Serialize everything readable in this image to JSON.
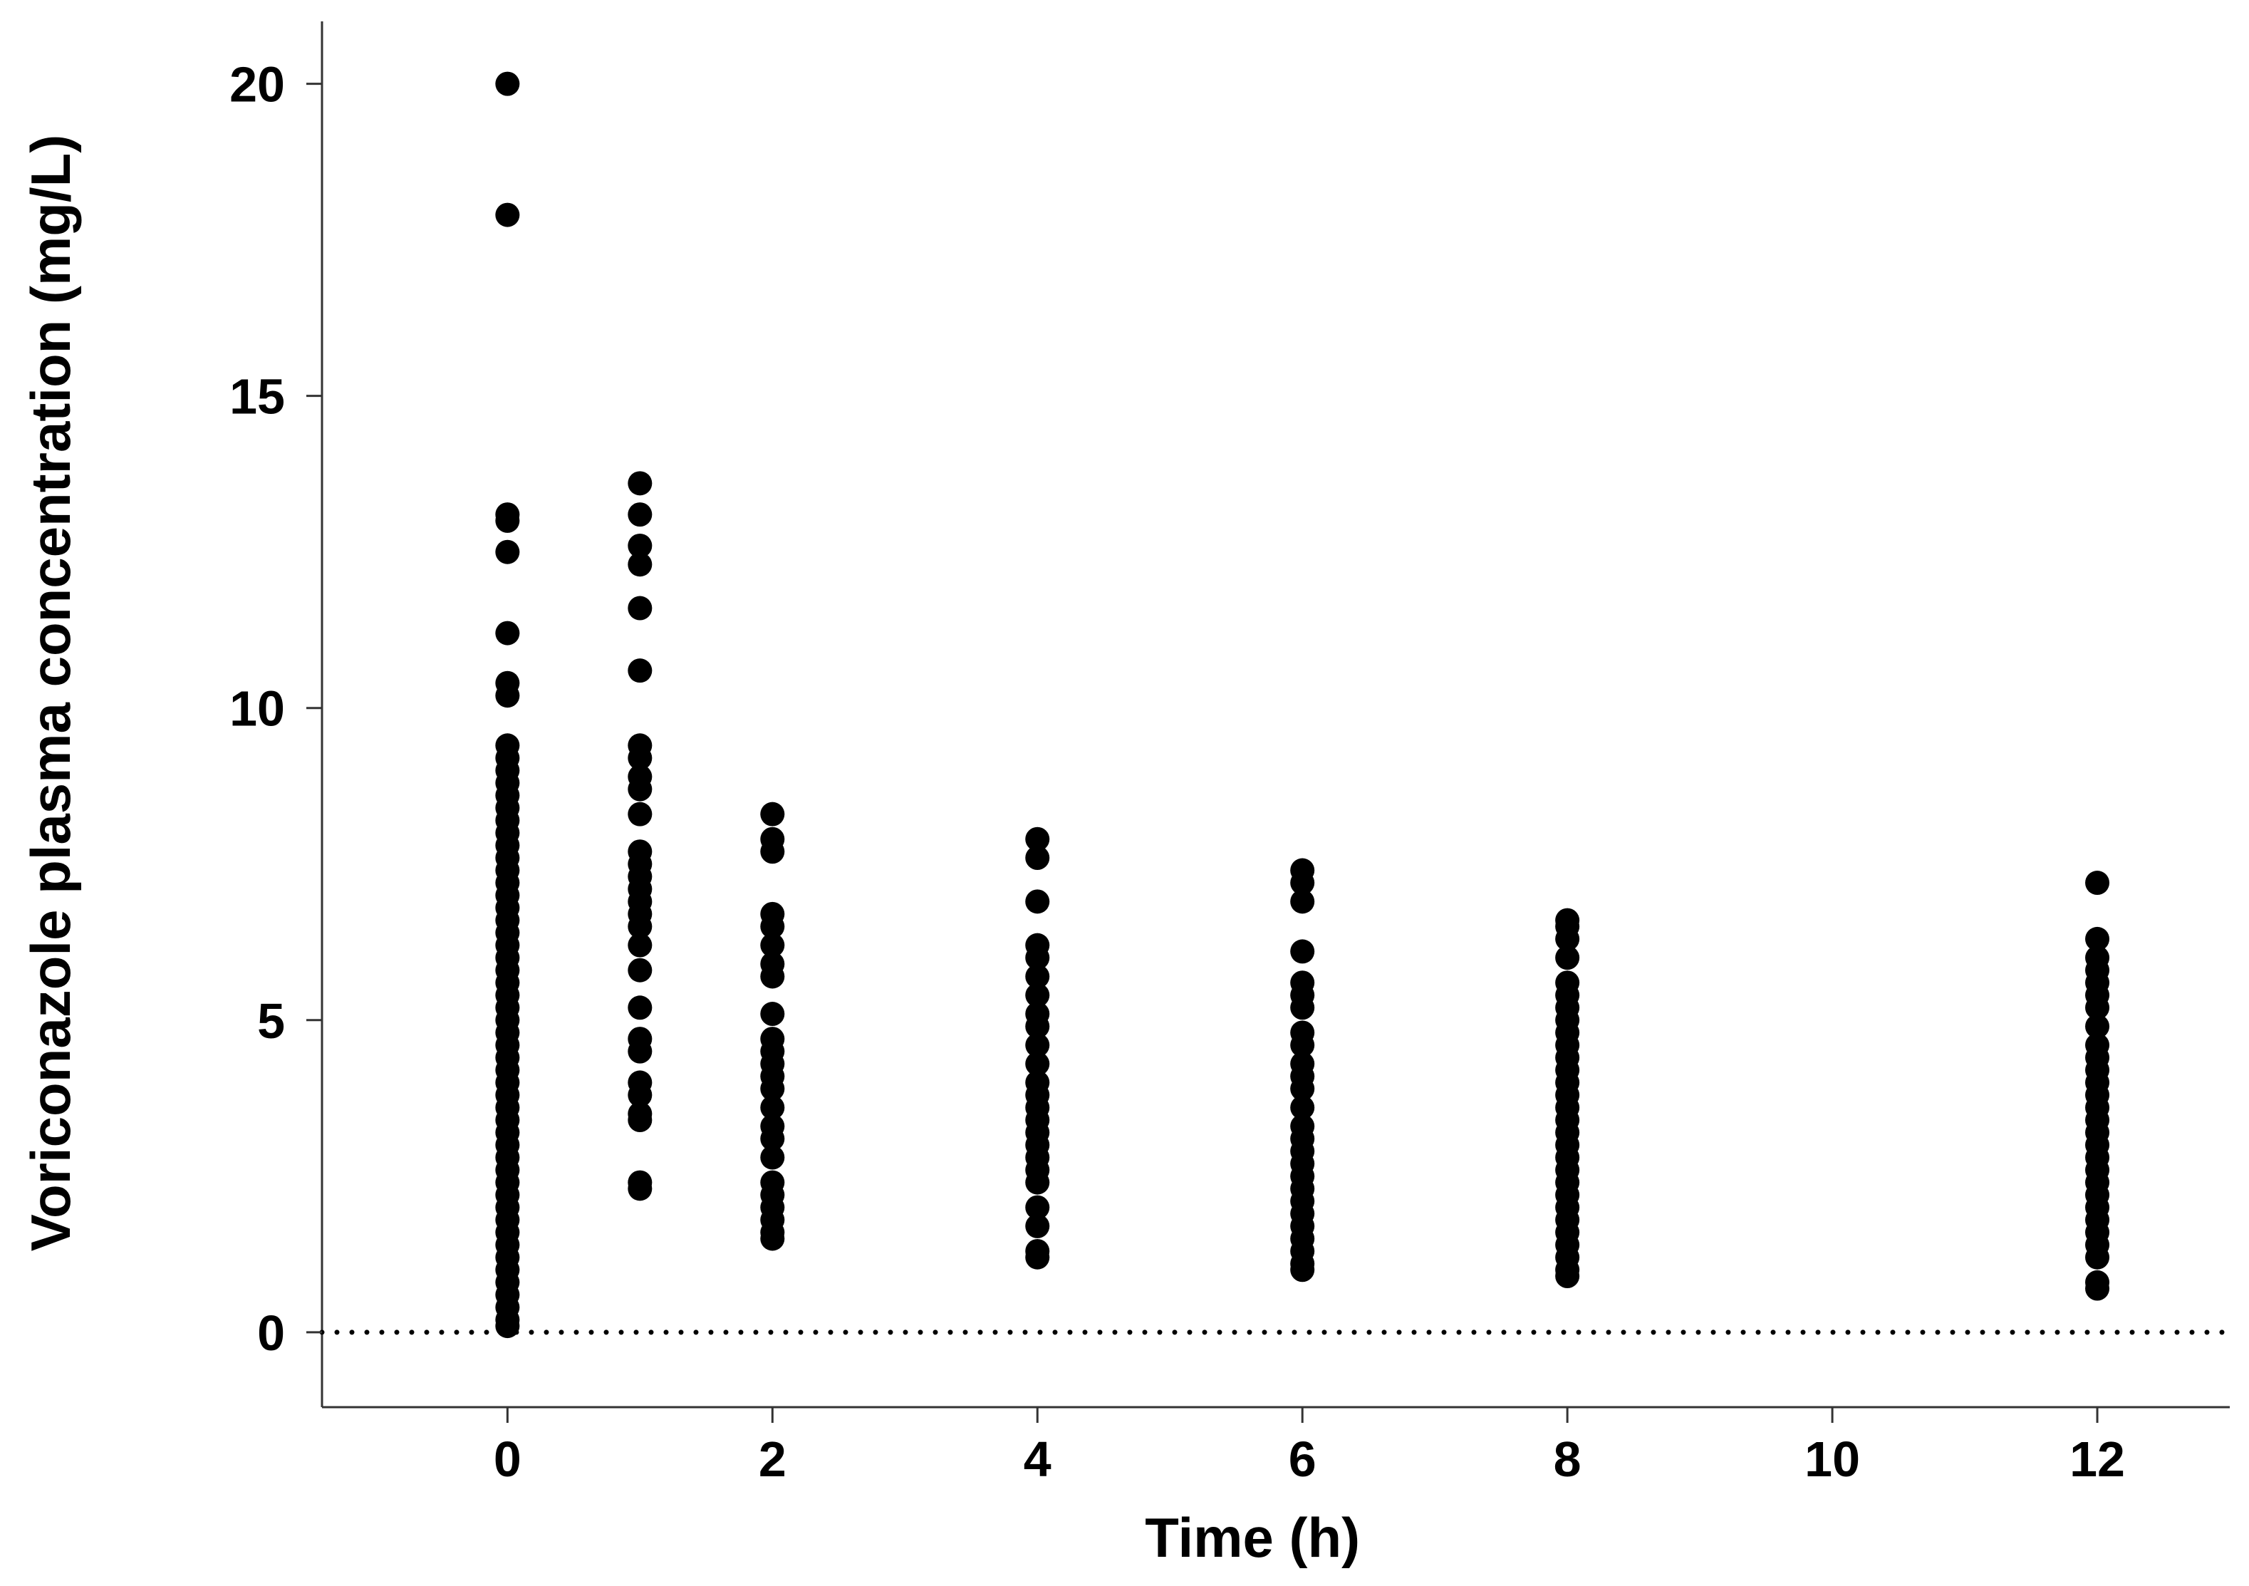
{
  "chart_data": {
    "type": "scatter",
    "title": "",
    "xlabel": "Time (h)",
    "ylabel": "Voriconazole plasma concentration (mg/L)",
    "xlim": [
      -1.4,
      13
    ],
    "ylim": [
      -1.2,
      21
    ],
    "x_ticks": [
      0,
      2,
      4,
      6,
      8,
      10,
      12
    ],
    "y_ticks": [
      0,
      5,
      10,
      15,
      20
    ],
    "x_tick_labels": [
      "0",
      "2",
      "4",
      "6",
      "8",
      "10",
      "12"
    ],
    "y_tick_labels": [
      "0",
      "5",
      "10",
      "15",
      "20"
    ],
    "reference_line": {
      "y": 0,
      "style": "dotted"
    },
    "grid": false,
    "legend": "none",
    "marker_color": "#000000",
    "series": [
      {
        "x": 0,
        "y": [
          20.0,
          17.9,
          13.1,
          13.0,
          12.5,
          11.2,
          10.4,
          10.2,
          9.4,
          9.2,
          9.0,
          8.8,
          8.6,
          8.4,
          8.2,
          8.0,
          7.8,
          7.6,
          7.4,
          7.2,
          7.0,
          6.8,
          6.6,
          6.4,
          6.2,
          6.0,
          5.8,
          5.6,
          5.4,
          5.2,
          5.0,
          4.8,
          4.6,
          4.4,
          4.2,
          4.0,
          3.8,
          3.6,
          3.4,
          3.2,
          3.0,
          2.8,
          2.6,
          2.4,
          2.2,
          2.0,
          1.8,
          1.6,
          1.4,
          1.2,
          1.0,
          0.8,
          0.6,
          0.4,
          0.2,
          0.1
        ]
      },
      {
        "x": 1,
        "y": [
          13.6,
          13.1,
          12.6,
          12.3,
          11.6,
          10.6,
          9.4,
          9.2,
          8.9,
          8.7,
          8.3,
          7.7,
          7.5,
          7.3,
          7.1,
          6.9,
          6.7,
          6.5,
          6.2,
          5.8,
          5.2,
          4.7,
          4.5,
          4.0,
          3.8,
          3.5,
          3.4,
          2.4,
          2.3
        ]
      },
      {
        "x": 2,
        "y": [
          8.3,
          7.9,
          7.7,
          6.7,
          6.5,
          6.2,
          5.9,
          5.7,
          5.1,
          4.7,
          4.5,
          4.3,
          4.1,
          3.9,
          3.6,
          3.3,
          3.1,
          2.8,
          2.4,
          2.2,
          2.0,
          1.8,
          1.6,
          1.5
        ]
      },
      {
        "x": 4,
        "y": [
          7.9,
          7.6,
          6.9,
          6.2,
          6.0,
          5.7,
          5.4,
          5.1,
          4.9,
          4.6,
          4.3,
          4.0,
          3.8,
          3.6,
          3.4,
          3.2,
          3.0,
          2.8,
          2.6,
          2.4,
          2.0,
          1.7,
          1.3,
          1.2
        ]
      },
      {
        "x": 6,
        "y": [
          7.4,
          7.2,
          6.9,
          6.1,
          5.6,
          5.4,
          5.2,
          4.8,
          4.6,
          4.3,
          4.1,
          3.9,
          3.6,
          3.3,
          3.1,
          2.9,
          2.7,
          2.5,
          2.3,
          2.1,
          1.9,
          1.7,
          1.5,
          1.3,
          1.1,
          1.0
        ]
      },
      {
        "x": 8,
        "y": [
          6.6,
          6.5,
          6.3,
          6.0,
          5.6,
          5.4,
          5.2,
          5.0,
          4.8,
          4.6,
          4.4,
          4.2,
          4.0,
          3.8,
          3.6,
          3.4,
          3.2,
          3.0,
          2.8,
          2.6,
          2.4,
          2.2,
          2.0,
          1.8,
          1.6,
          1.4,
          1.2,
          1.0,
          0.9
        ]
      },
      {
        "x": 12,
        "y": [
          7.2,
          6.3,
          6.0,
          5.8,
          5.6,
          5.4,
          5.2,
          4.9,
          4.6,
          4.4,
          4.2,
          4.0,
          3.8,
          3.6,
          3.4,
          3.2,
          3.0,
          2.8,
          2.6,
          2.4,
          2.2,
          2.0,
          1.8,
          1.6,
          1.4,
          1.2,
          0.8,
          0.7
        ]
      }
    ]
  }
}
